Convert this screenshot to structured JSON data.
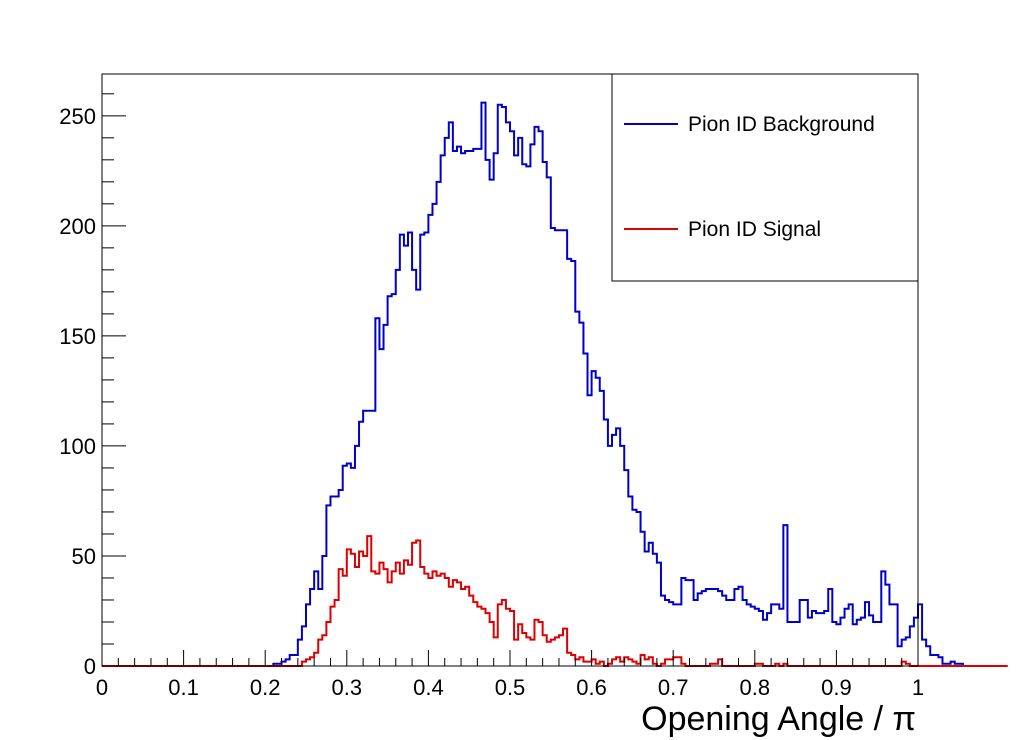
{
  "chart_data": {
    "type": "histogram",
    "xlabel": "Opening Angle / π",
    "ylabel": "",
    "xlim": [
      0,
      1
    ],
    "ylim": [
      0,
      269
    ],
    "grid": false,
    "legend_position": "top-right",
    "bins": 200,
    "x_ticks": [
      "0",
      "0.1",
      "0.2",
      "0.3",
      "0.4",
      "0.5",
      "0.6",
      "0.7",
      "0.8",
      "0.9",
      "1"
    ],
    "y_ticks": [
      "0",
      "50",
      "100",
      "150",
      "200",
      "250"
    ],
    "series": [
      {
        "name": "Pion ID Background",
        "color": "#0000cc",
        "bin_width": 0.005,
        "values": [
          0,
          0,
          0,
          0,
          0,
          0,
          0,
          0,
          0,
          0,
          0,
          0,
          0,
          0,
          0,
          0,
          0,
          0,
          0,
          0,
          0,
          0,
          0,
          0,
          0,
          0,
          0,
          0,
          0,
          0,
          0,
          0,
          0,
          0,
          0,
          0,
          0,
          0,
          0,
          0,
          0,
          0,
          1,
          1,
          2,
          3,
          5,
          5,
          12,
          18,
          28,
          35,
          43,
          35,
          50,
          73,
          77,
          77,
          80,
          91,
          92,
          90,
          100,
          111,
          116,
          116,
          116,
          158,
          144,
          155,
          168,
          169,
          180,
          196,
          191,
          197,
          180,
          171,
          196,
          197,
          205,
          210,
          220,
          232,
          240,
          247,
          234,
          236,
          233,
          234,
          234,
          235,
          235,
          256,
          230,
          221,
          233,
          255,
          254,
          247,
          243,
          232,
          240,
          228,
          227,
          237,
          245,
          243,
          229,
          222,
          199,
          198,
          198,
          198,
          185,
          184,
          161,
          156,
          142,
          123,
          134,
          131,
          125,
          112,
          100,
          105,
          108,
          100,
          89,
          77,
          71,
          70,
          61,
          52,
          56,
          51,
          47,
          32,
          30,
          29,
          28,
          28,
          40,
          39,
          39,
          30,
          33,
          34,
          35,
          35,
          35,
          34,
          32,
          30,
          30,
          35,
          36,
          30,
          28,
          27,
          26,
          25,
          21,
          24,
          28,
          28,
          26,
          64,
          20,
          20,
          20,
          30,
          30,
          22,
          25,
          24,
          24,
          25,
          35,
          20,
          19,
          22,
          26,
          28,
          19,
          21,
          22,
          29,
          23,
          20,
          20,
          43,
          37,
          28,
          28,
          9,
          12,
          13,
          18,
          22,
          28,
          12,
          9,
          5,
          5,
          4,
          1,
          1,
          2,
          1,
          1
        ]
      },
      {
        "name": "Pion ID Signal",
        "color": "#dd0000",
        "bin_width": 0.005,
        "values": [
          0,
          0,
          0,
          0,
          0,
          0,
          0,
          0,
          0,
          0,
          0,
          0,
          0,
          0,
          0,
          0,
          0,
          0,
          0,
          0,
          0,
          0,
          0,
          0,
          0,
          0,
          0,
          0,
          0,
          0,
          0,
          0,
          0,
          0,
          0,
          0,
          0,
          0,
          0,
          0,
          0,
          0,
          0,
          0,
          0,
          0,
          0,
          0,
          0,
          2,
          3,
          4,
          6,
          12,
          14,
          20,
          27,
          30,
          44,
          41,
          53,
          51,
          45,
          52,
          50,
          59,
          43,
          42,
          47,
          44,
          38,
          43,
          47,
          42,
          48,
          46,
          56,
          57,
          45,
          42,
          40,
          43,
          41,
          42,
          40,
          36,
          39,
          38,
          35,
          36,
          32,
          29,
          27,
          26,
          24,
          20,
          13,
          28,
          30,
          26,
          25,
          12,
          19,
          15,
          13,
          12,
          21,
          20,
          14,
          11,
          12,
          13,
          14,
          17,
          6,
          5,
          3,
          4,
          2,
          2,
          3,
          1,
          2,
          0,
          1,
          3,
          4,
          2,
          4,
          3,
          2,
          1,
          5,
          3,
          4,
          1,
          0,
          1,
          3,
          3,
          4,
          4,
          1,
          0,
          0,
          0,
          0,
          0,
          0,
          1,
          1,
          3,
          0,
          0,
          0,
          0,
          0,
          0,
          0,
          0,
          1,
          1,
          0,
          0,
          0,
          1,
          0,
          1,
          0,
          0,
          0,
          0,
          0,
          0,
          0,
          0,
          0,
          0,
          0,
          0,
          0,
          0,
          0,
          0,
          0,
          0,
          0,
          0,
          0,
          0,
          0,
          0,
          0,
          0,
          0,
          0,
          2,
          1,
          0,
          0,
          0,
          0,
          0,
          0,
          0,
          0,
          0,
          0,
          0,
          0,
          0,
          0,
          0,
          0,
          0,
          0,
          0,
          0,
          0,
          0,
          0,
          0
        ]
      }
    ]
  }
}
